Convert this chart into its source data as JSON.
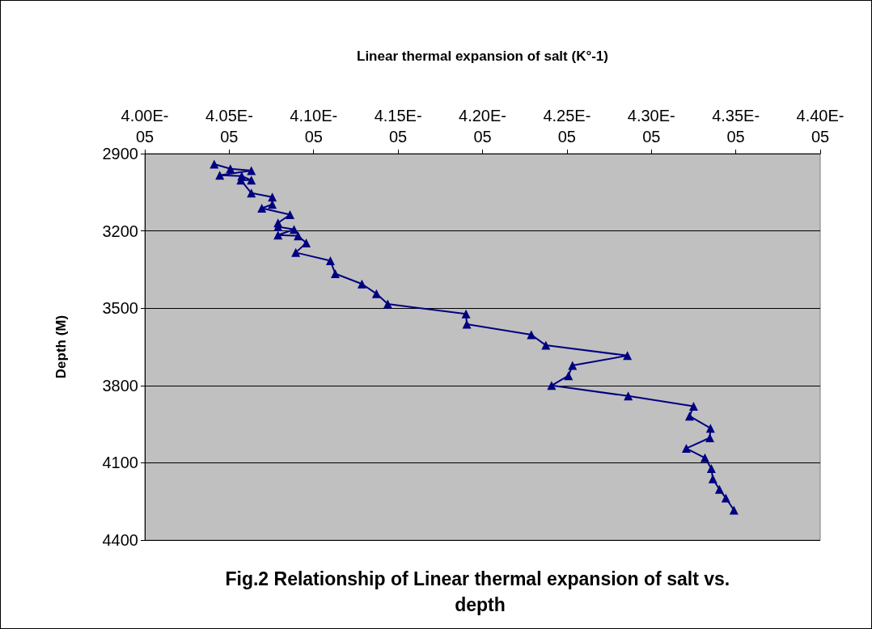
{
  "chart_data": {
    "type": "line",
    "title": "Fig.2 Relationship of Linear thermal expansion of salt vs. depth",
    "xlabel": "Linear thermal expansion of salt (K°-1)",
    "ylabel": "Depth (M)",
    "x": [
      4.0411e-05,
      4.0507e-05,
      4.0631e-05,
      4.0444e-05,
      4.0574e-05,
      4.0631e-05,
      4.0569e-05,
      4.0631e-05,
      4.0755e-05,
      4.0755e-05,
      4.0693e-05,
      4.086e-05,
      4.0789e-05,
      4.0789e-05,
      4.0884e-05,
      4.0789e-05,
      4.0908e-05,
      4.0956e-05,
      4.0894e-05,
      4.1099e-05,
      4.1128e-05,
      4.1286e-05,
      4.1372e-05,
      4.1439e-05,
      4.1902e-05,
      4.1907e-05,
      4.2289e-05,
      4.2375e-05,
      4.2858e-05,
      4.2533e-05,
      4.2509e-05,
      4.2409e-05,
      4.2863e-05,
      4.325e-05,
      4.3226e-05,
      4.335e-05,
      4.3346e-05,
      4.3207e-05,
      4.3317e-05,
      4.3355e-05,
      4.3364e-05,
      4.3403e-05,
      4.3441e-05,
      4.3489e-05
    ],
    "series": [
      {
        "color": "#000080",
        "values": [
          2941,
          2959,
          2966,
          2984,
          2987,
          3003,
          3003,
          3053,
          3069,
          3097,
          3112,
          3137,
          3169,
          3184,
          3194,
          3216,
          3219,
          3247,
          3284,
          3316,
          3366,
          3406,
          3444,
          3484,
          3522,
          3562,
          3603,
          3644,
          3684,
          3722,
          3762,
          3800,
          3841,
          3881,
          3919,
          3966,
          4003,
          4044,
          4081,
          4122,
          4162,
          4203,
          4237,
          4284
        ]
      }
    ],
    "xlim": [
      4e-05,
      4.4e-05
    ],
    "xticks": [
      {
        "value": 4e-05,
        "label": "4.00E-05"
      },
      {
        "value": 4.05e-05,
        "label": "4.05E-05"
      },
      {
        "value": 4.1e-05,
        "label": "4.10E-05"
      },
      {
        "value": 4.15e-05,
        "label": "4.15E-05"
      },
      {
        "value": 4.2e-05,
        "label": "4.20E-05"
      },
      {
        "value": 4.25e-05,
        "label": "4.25E-05"
      },
      {
        "value": 4.3e-05,
        "label": "4.30E-05"
      },
      {
        "value": 4.35e-05,
        "label": "4.35E-05"
      },
      {
        "value": 4.4e-05,
        "label": "4.40E-05"
      }
    ],
    "ylim": [
      4400,
      2900
    ],
    "yticks": [
      2900,
      3200,
      3500,
      3800,
      4100,
      4400
    ],
    "grid": "y",
    "marker": "triangle",
    "line_style": "solid"
  }
}
